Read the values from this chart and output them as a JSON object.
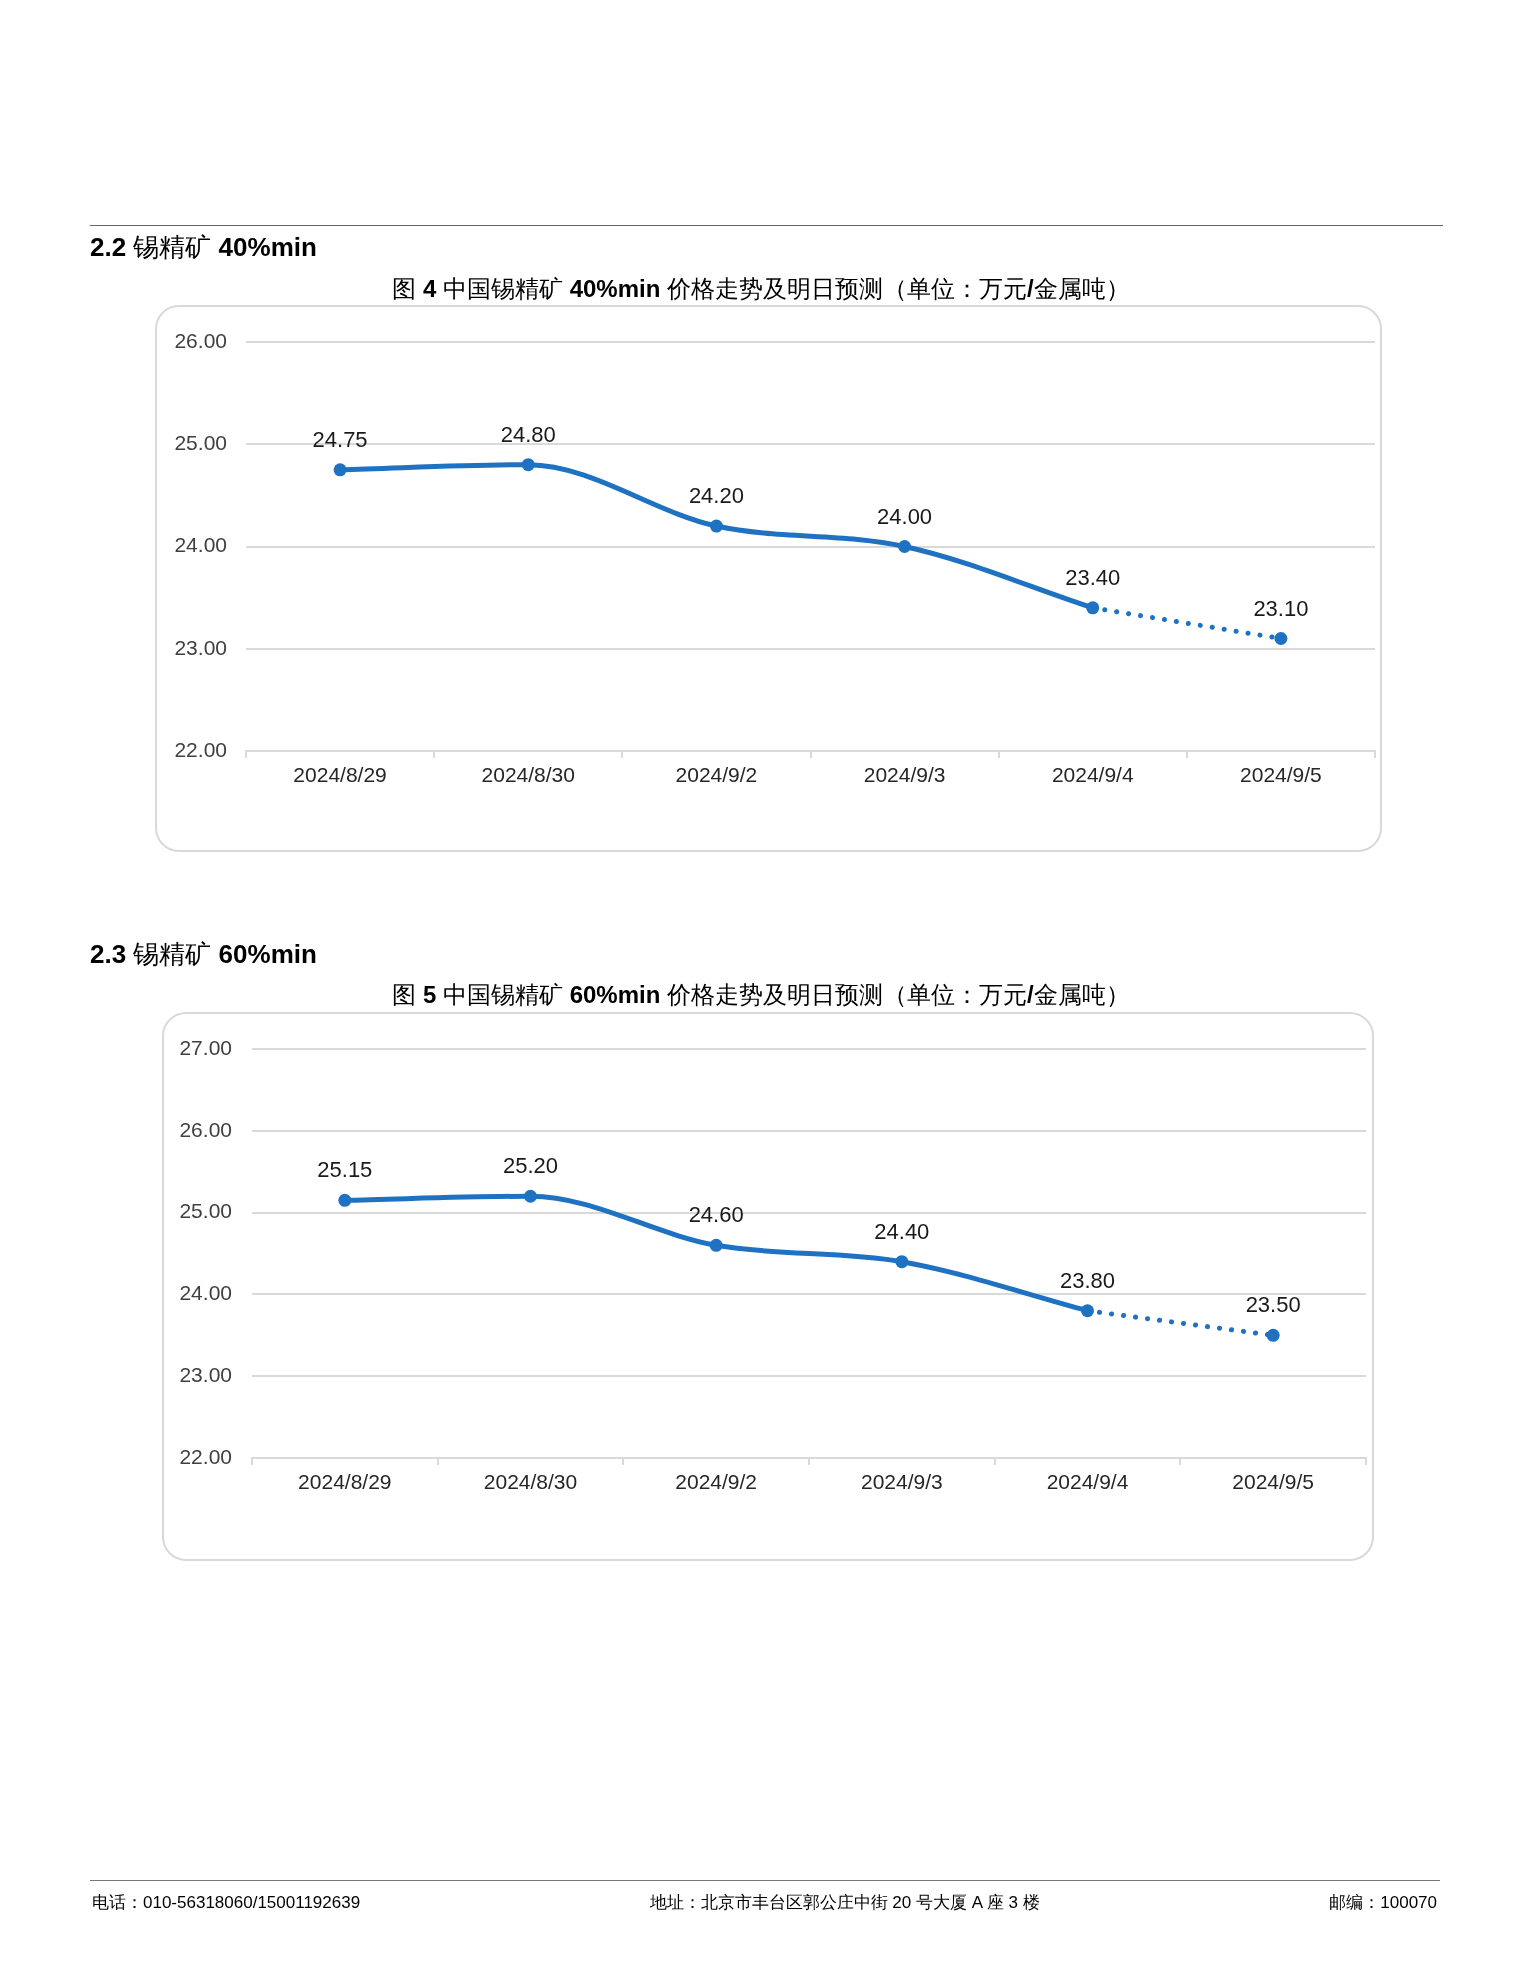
{
  "chart_data": [
    {
      "type": "line",
      "title": "图 4 中国锡精矿 40%min 价格走势及明日预测（单位：万元/金属吨）",
      "annotations": [
        "2.2 锡精矿 40%min"
      ],
      "categories": [
        "2024/8/29",
        "2024/8/30",
        "2024/9/2",
        "2024/9/3",
        "2024/9/4",
        "2024/9/5"
      ],
      "series": [
        {
          "color": "#1f72c2",
          "line_style": "solid",
          "values": [
            24.75,
            24.8,
            24.2,
            24.0,
            23.4,
            null
          ],
          "value_labels": [
            "24.75",
            "24.80",
            "24.20",
            "24.00",
            "23.40",
            null
          ]
        },
        {
          "color": "#1f72c2",
          "line_style": "dotted",
          "values": [
            null,
            null,
            null,
            null,
            23.4,
            23.1
          ],
          "value_labels": [
            null,
            null,
            null,
            null,
            null,
            "23.10"
          ]
        }
      ],
      "ylim": [
        22,
        26
      ],
      "yticks": [
        {
          "value": 22,
          "label": "22.00"
        },
        {
          "value": 23,
          "label": "23.00"
        },
        {
          "value": 24,
          "label": "24.00"
        },
        {
          "value": 25,
          "label": "25.00"
        },
        {
          "value": 26,
          "label": "26.00"
        }
      ],
      "grid": "y",
      "marker": "circle",
      "legend": false
    },
    {
      "type": "line",
      "title": "图 5 中国锡精矿 60%min 价格走势及明日预测（单位：万元/金属吨）",
      "annotations": [
        "2.3 锡精矿 60%min",
        "电话：010-56318060/15001192639",
        "地址：北京市丰台区郭公庄中街 20 号大厦 A 座 3 楼",
        "邮编：100070"
      ],
      "categories": [
        "2024/8/29",
        "2024/8/30",
        "2024/9/2",
        "2024/9/3",
        "2024/9/4",
        "2024/9/5"
      ],
      "series": [
        {
          "color": "#1f72c2",
          "line_style": "solid",
          "values": [
            25.15,
            25.2,
            24.6,
            24.4,
            23.8,
            null
          ],
          "value_labels": [
            "25.15",
            "25.20",
            "24.60",
            "24.40",
            "23.80",
            null
          ]
        },
        {
          "color": "#1f72c2",
          "line_style": "dotted",
          "values": [
            null,
            null,
            null,
            null,
            23.8,
            23.5
          ],
          "value_labels": [
            null,
            null,
            null,
            null,
            null,
            "23.50"
          ]
        }
      ],
      "ylim": [
        22,
        27
      ],
      "yticks": [
        {
          "value": 22,
          "label": "22.00"
        },
        {
          "value": 23,
          "label": "23.00"
        },
        {
          "value": 24,
          "label": "24.00"
        },
        {
          "value": 25,
          "label": "25.00"
        },
        {
          "value": 26,
          "label": "26.00"
        },
        {
          "value": 27,
          "label": "27.00"
        }
      ],
      "grid": "y",
      "marker": "circle",
      "legend": false
    }
  ]
}
